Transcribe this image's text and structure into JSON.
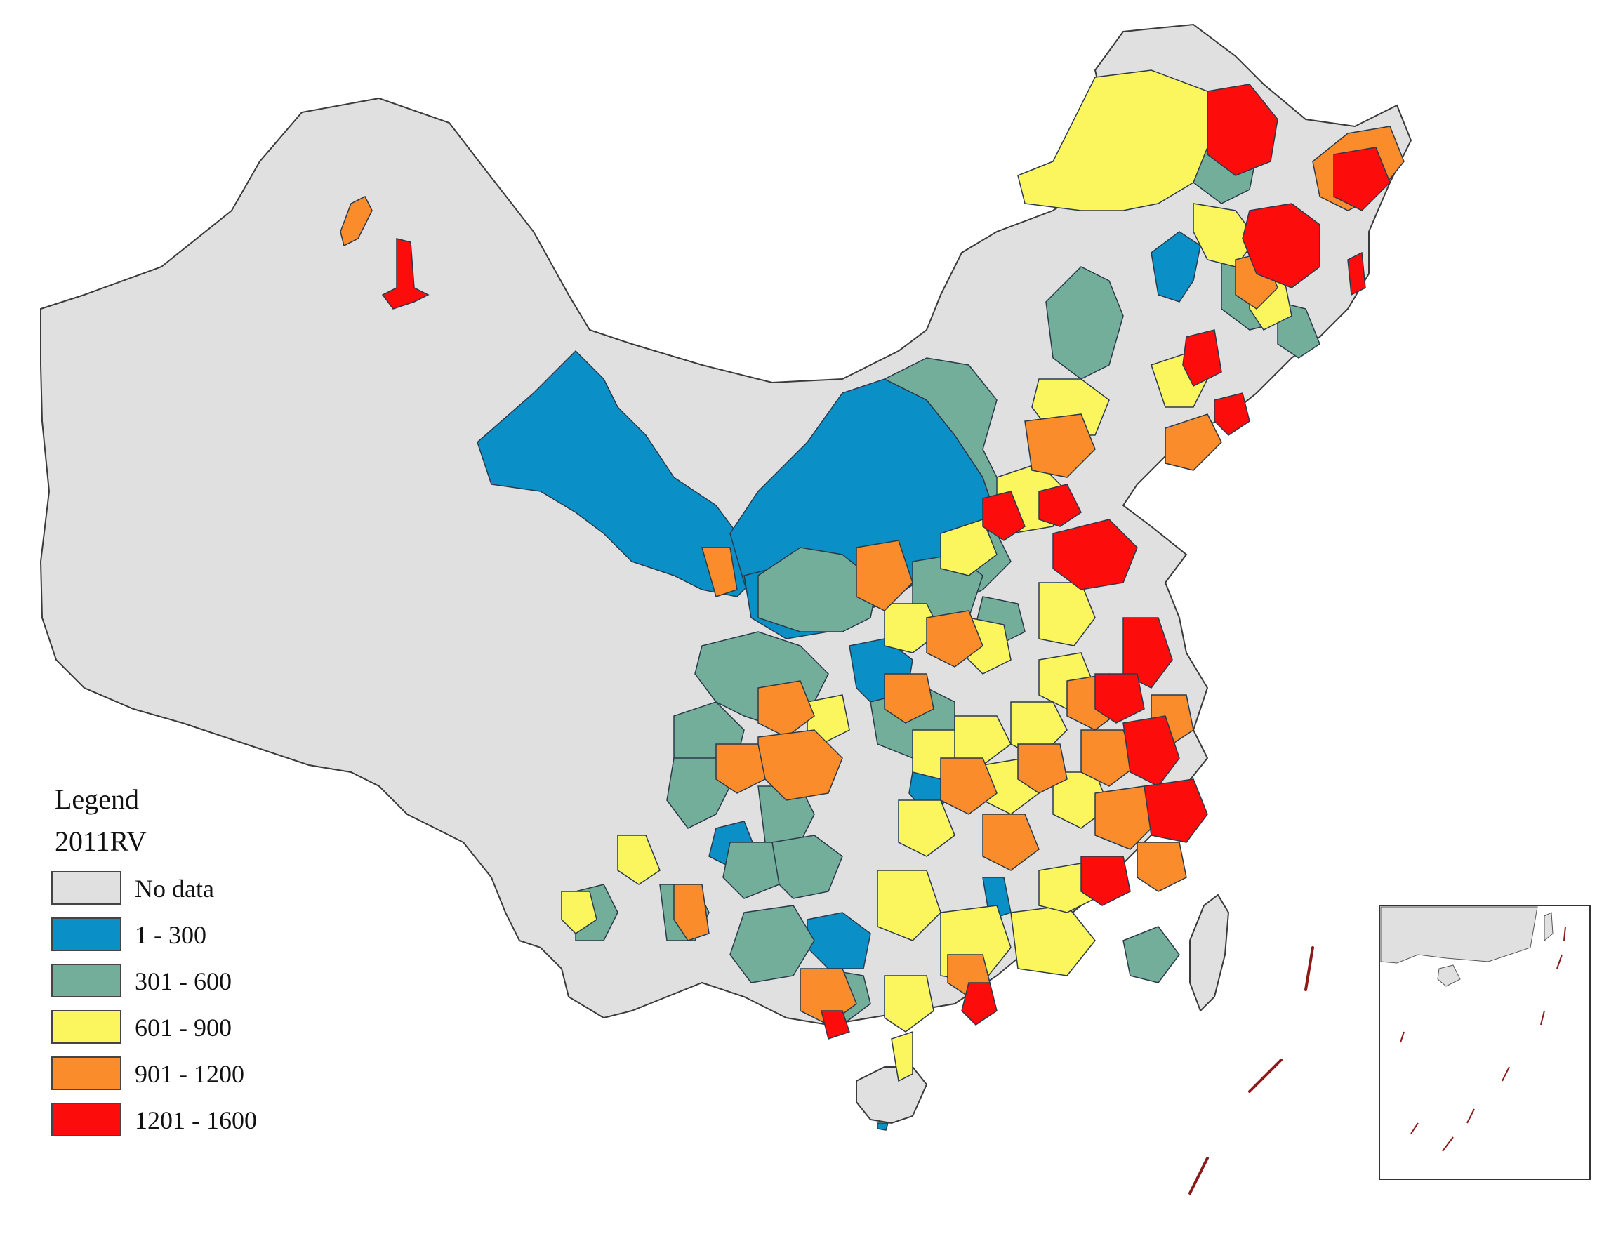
{
  "legend": {
    "title": "Legend",
    "subtitle": "2011RV",
    "classes": [
      {
        "label": "No data",
        "color": "#e0e0e0"
      },
      {
        "label": "1 - 300",
        "color": "#0a8fc6"
      },
      {
        "label": "301 - 600",
        "color": "#73ae9a"
      },
      {
        "label": "601 - 900",
        "color": "#fbf55e"
      },
      {
        "label": "901 - 1200",
        "color": "#fb8c2c"
      },
      {
        "label": "1201 - 1600",
        "color": "#fc0d0c"
      }
    ]
  },
  "colors": {
    "boundary": "#3a3a3a",
    "nine_dash": "#8b1a1a",
    "inset_border": "#333333"
  }
}
